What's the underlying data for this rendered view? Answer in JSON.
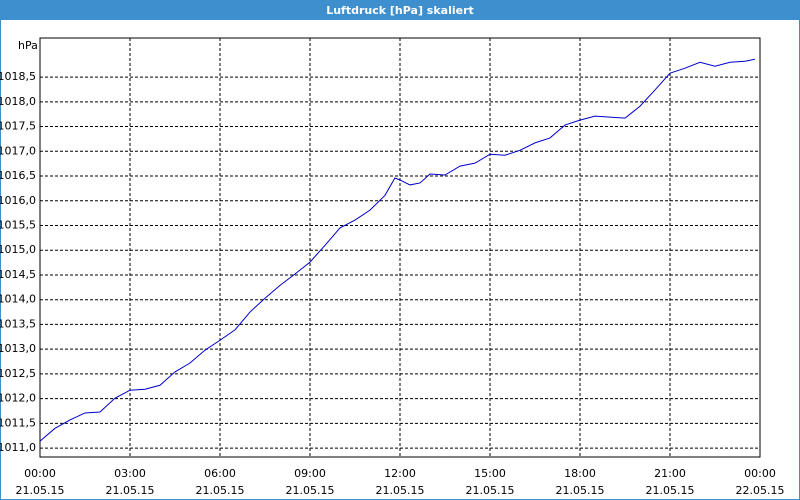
{
  "chart_data": {
    "type": "line",
    "title": "Luftdruck [hPa] skaliert",
    "y_label": "hPa",
    "x": [
      0,
      0.5,
      1,
      1.5,
      2,
      2.5,
      3,
      3.5,
      4,
      4.5,
      5,
      5.5,
      6,
      6.5,
      7,
      7.5,
      8,
      8.5,
      9,
      9.5,
      10,
      10.5,
      11,
      11.5,
      11.83,
      12,
      12.33,
      12.67,
      13,
      13.5,
      14,
      14.5,
      15,
      15.5,
      16,
      16.5,
      17,
      17.5,
      18,
      18.5,
      19,
      19.5,
      20,
      20.5,
      21,
      21.5,
      22,
      22.5,
      23,
      23.5,
      23.83
    ],
    "series": [
      {
        "name": "Luftdruck",
        "color": "#0000cc",
        "values": [
          1011.14,
          1011.4,
          1011.57,
          1011.71,
          1011.73,
          1012.01,
          1012.17,
          1012.19,
          1012.27,
          1012.54,
          1012.72,
          1012.98,
          1013.18,
          1013.39,
          1013.75,
          1014.03,
          1014.29,
          1014.52,
          1014.76,
          1015.1,
          1015.45,
          1015.61,
          1015.81,
          1016.11,
          1016.46,
          1016.42,
          1016.32,
          1016.36,
          1016.54,
          1016.52,
          1016.7,
          1016.76,
          1016.94,
          1016.92,
          1017.02,
          1017.17,
          1017.27,
          1017.53,
          1017.63,
          1017.71,
          1017.69,
          1017.67,
          1017.91,
          1018.24,
          1018.58,
          1018.68,
          1018.8,
          1018.72,
          1018.8,
          1018.82,
          1018.86
        ]
      }
    ],
    "xlim": [
      0,
      24
    ],
    "xticks": [
      {
        "value": 0,
        "label": "00:00"
      },
      {
        "value": 3,
        "label": "03:00"
      },
      {
        "value": 6,
        "label": "06:00"
      },
      {
        "value": 9,
        "label": "09:00"
      },
      {
        "value": 12,
        "label": "12:00"
      },
      {
        "value": 15,
        "label": "15:00"
      },
      {
        "value": 18,
        "label": "18:00"
      },
      {
        "value": 21,
        "label": "21:00"
      },
      {
        "value": 24,
        "label": "00:00"
      }
    ],
    "xtick_dates": [
      "21.05.15",
      "21.05.15",
      "21.05.15",
      "21.05.15",
      "21.05.15",
      "21.05.15",
      "21.05.15",
      "21.05.15",
      "22.05.15"
    ],
    "ylim": [
      1010.82,
      1019.29
    ],
    "yticks": [
      {
        "value": 1011,
        "label": "1011,0"
      },
      {
        "value": 1011.5,
        "label": "1011,5"
      },
      {
        "value": 1012,
        "label": "1012,0"
      },
      {
        "value": 1012.5,
        "label": "1012,5"
      },
      {
        "value": 1013,
        "label": "1013,0"
      },
      {
        "value": 1013.5,
        "label": "1013,5"
      },
      {
        "value": 1014,
        "label": "1014,0"
      },
      {
        "value": 1014.5,
        "label": "1014,5"
      },
      {
        "value": 1015,
        "label": "1015,0"
      },
      {
        "value": 1015.5,
        "label": "1015,5"
      },
      {
        "value": 1016,
        "label": "1016,0"
      },
      {
        "value": 1016.5,
        "label": "1016,5"
      },
      {
        "value": 1017,
        "label": "1017,0"
      },
      {
        "value": 1017.5,
        "label": "1017,5"
      },
      {
        "value": 1018,
        "label": "1018,0"
      },
      {
        "value": 1018.5,
        "label": "1018,5"
      }
    ],
    "grid": true
  }
}
